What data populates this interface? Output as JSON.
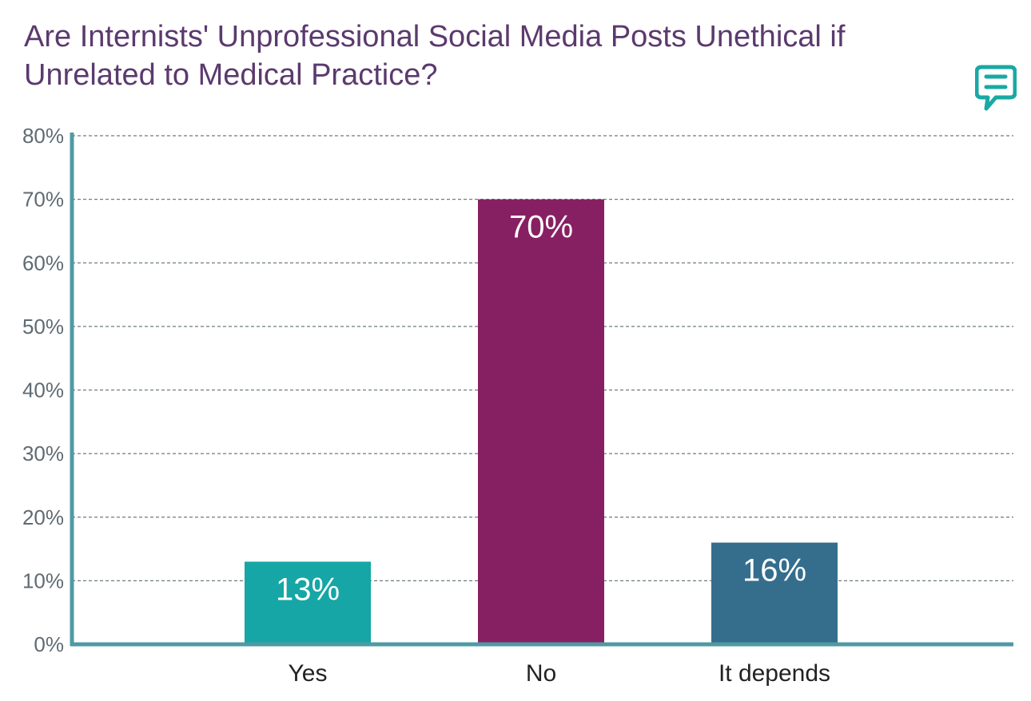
{
  "chart_data": {
    "type": "bar",
    "title": "Are Internists' Unprofessional Social Media Posts Unethical if Unrelated to Medical Practice?",
    "categories": [
      "Yes",
      "No",
      "It depends"
    ],
    "values": [
      13,
      70,
      16
    ],
    "data_labels": [
      "13%",
      "70%",
      "16%"
    ],
    "colors": [
      "#16a6a6",
      "#872063",
      "#356e8d"
    ],
    "ylim": [
      0,
      80
    ],
    "yticks": [
      0,
      10,
      20,
      30,
      40,
      50,
      60,
      70,
      80
    ],
    "ytick_labels": [
      "0%",
      "10%",
      "20%",
      "30%",
      "40%",
      "50%",
      "60%",
      "70%",
      "80%"
    ],
    "grid": true,
    "axis_color": "#4e9aa3",
    "grid_color": "#6b7b80"
  },
  "logo": {
    "icon": "chat-bubble-icon",
    "color": "#19a9a4"
  }
}
